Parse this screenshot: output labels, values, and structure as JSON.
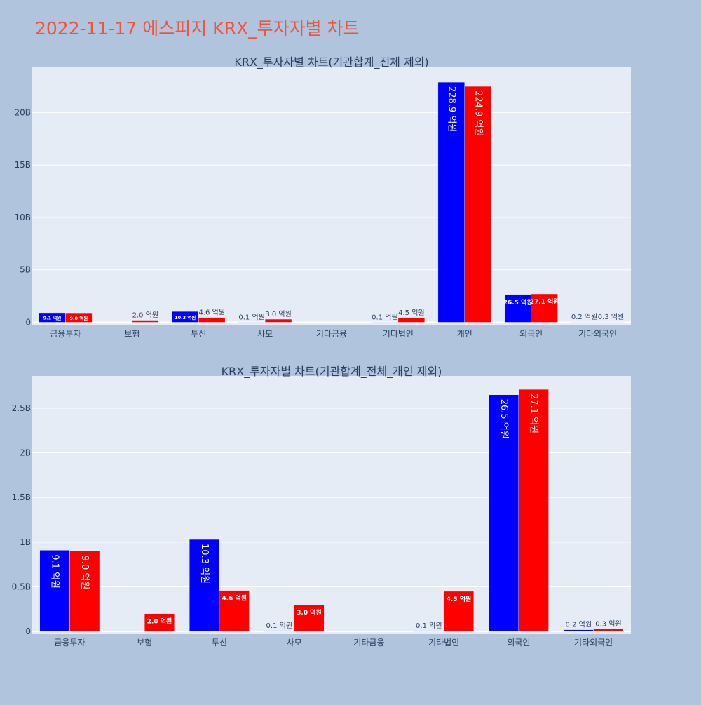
{
  "title": "2022-11-17 에스피지 KRX_투자자별 차트",
  "colors": {
    "page_bg": "#b0c4de",
    "plot_bg": "#e5ecf6",
    "grid": "#ffffff",
    "title": "#ef553b",
    "text": "#2a3f5f",
    "sell": "#0000ff",
    "buy": "#ff0000"
  },
  "chart_data": [
    {
      "type": "bar",
      "title": "KRX_투자자별 차트(기관합계_전체 제외)",
      "categories": [
        "금융투자",
        "보험",
        "투신",
        "사모",
        "기타금융",
        "기타법인",
        "개인",
        "외국인",
        "기타외국인"
      ],
      "yticks": [
        0,
        5,
        10,
        15,
        20
      ],
      "ytick_labels": [
        "0",
        "5B",
        "10B",
        "15B",
        "20B"
      ],
      "ylim": [
        -0.3,
        24.3
      ],
      "unit": "billions",
      "series": [
        {
          "name": "series-1",
          "color": "#0000ff",
          "values": [
            0.91,
            0.0,
            1.03,
            0.01,
            0.0,
            0.01,
            22.89,
            2.65,
            0.02
          ],
          "labels": [
            "9.1 억원",
            "",
            "10.3 억원",
            "0.1 억원",
            "",
            "0.1 억원",
            "228.9 억원",
            "26.5 억원",
            "0.2 억원"
          ]
        },
        {
          "name": "series-2",
          "color": "#ff0000",
          "values": [
            0.9,
            0.2,
            0.46,
            0.3,
            0.0,
            0.45,
            22.49,
            2.71,
            0.03
          ],
          "labels": [
            "9.0 억원",
            "2.0 억원",
            "4.6 억원",
            "3.0 억원",
            "",
            "4.5 억원",
            "224.9 억원",
            "27.1 억원",
            "0.3 억원"
          ]
        }
      ]
    },
    {
      "type": "bar",
      "title": "KRX_투자자별 차트(기관합계_전체_개인 제외)",
      "categories": [
        "금융투자",
        "보험",
        "투신",
        "사모",
        "기타금융",
        "기타법인",
        "외국인",
        "기타외국인"
      ],
      "yticks": [
        0,
        0.5,
        1,
        1.5,
        2,
        2.5
      ],
      "ytick_labels": [
        "0",
        "0.5B",
        "1B",
        "1.5B",
        "2B",
        "2.5B"
      ],
      "ylim": [
        -0.03,
        2.86
      ],
      "unit": "billions",
      "series": [
        {
          "name": "series-1",
          "color": "#0000ff",
          "values": [
            0.91,
            0.0,
            1.03,
            0.01,
            0.0,
            0.01,
            2.65,
            0.02
          ],
          "labels": [
            "9.1 억원",
            "",
            "10.3 억원",
            "0.1 억원",
            "",
            "0.1 억원",
            "26.5 억원",
            "0.2 억원"
          ]
        },
        {
          "name": "series-2",
          "color": "#ff0000",
          "values": [
            0.9,
            0.2,
            0.46,
            0.3,
            0.0,
            0.45,
            2.71,
            0.03
          ],
          "labels": [
            "9.0 억원",
            "2.0 억원",
            "4.6 억원",
            "3.0 억원",
            "",
            "4.5 억원",
            "27.1 억원",
            "0.3 억원"
          ]
        }
      ]
    }
  ]
}
